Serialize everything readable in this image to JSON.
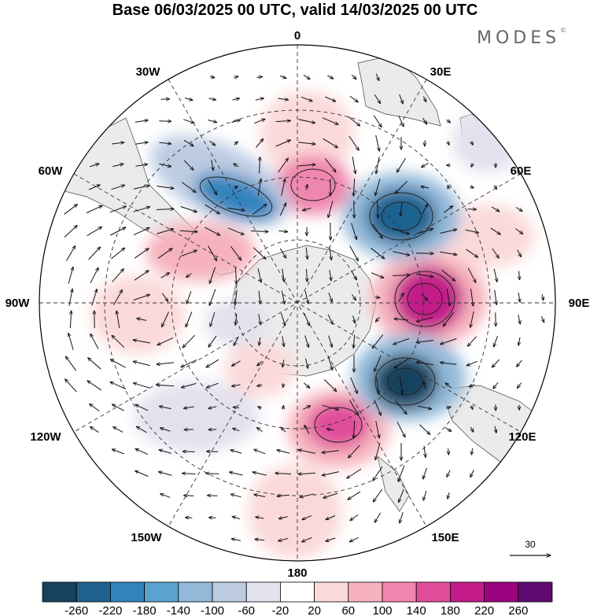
{
  "title": "Base 06/03/2025 00 UTC, valid 14/03/2025 00 UTC",
  "brand": "MODES",
  "brand_mark": "©",
  "longitude_labels": {
    "top": "0",
    "right": "90E",
    "bottom": "180",
    "left": "90W",
    "n30e": "30E",
    "n60e": "60E",
    "n120e": "120E",
    "n150e": "150E",
    "n30w": "30W",
    "n60w": "60W",
    "n120w": "120W",
    "n150w": "150W"
  },
  "reference_vector": {
    "label": "30"
  },
  "colorbar": {
    "ticks": [
      "-260",
      "-220",
      "-180",
      "-140",
      "-100",
      "-60",
      "-20",
      "20",
      "60",
      "100",
      "140",
      "180",
      "220",
      "260"
    ],
    "colors": [
      "#17425e",
      "#1f6290",
      "#3283bd",
      "#5aa2cf",
      "#93b9d9",
      "#bccbe2",
      "#e2e2ef",
      "#ffffff",
      "#fbd9d9",
      "#f6b3bd",
      "#ef86ad",
      "#e04d9b",
      "#c31c8a",
      "#99037e",
      "#5f0a73"
    ]
  },
  "map": {
    "projection": "polar-stereographic-south",
    "field_colors": {
      "land": "#ebebeb",
      "coast": "#444444",
      "grid": "#333333"
    },
    "anomaly_centres": [
      {
        "lon": 45,
        "value": -220
      },
      {
        "lon": 90,
        "value": 220
      },
      {
        "lon": 130,
        "value": -260
      },
      {
        "lon": 170,
        "value": 140
      },
      {
        "lon": -30,
        "value": -180
      },
      {
        "lon": -60,
        "value": 140
      },
      {
        "lon": 0,
        "value": 180
      },
      {
        "lon": -95,
        "value": 60
      }
    ]
  }
}
